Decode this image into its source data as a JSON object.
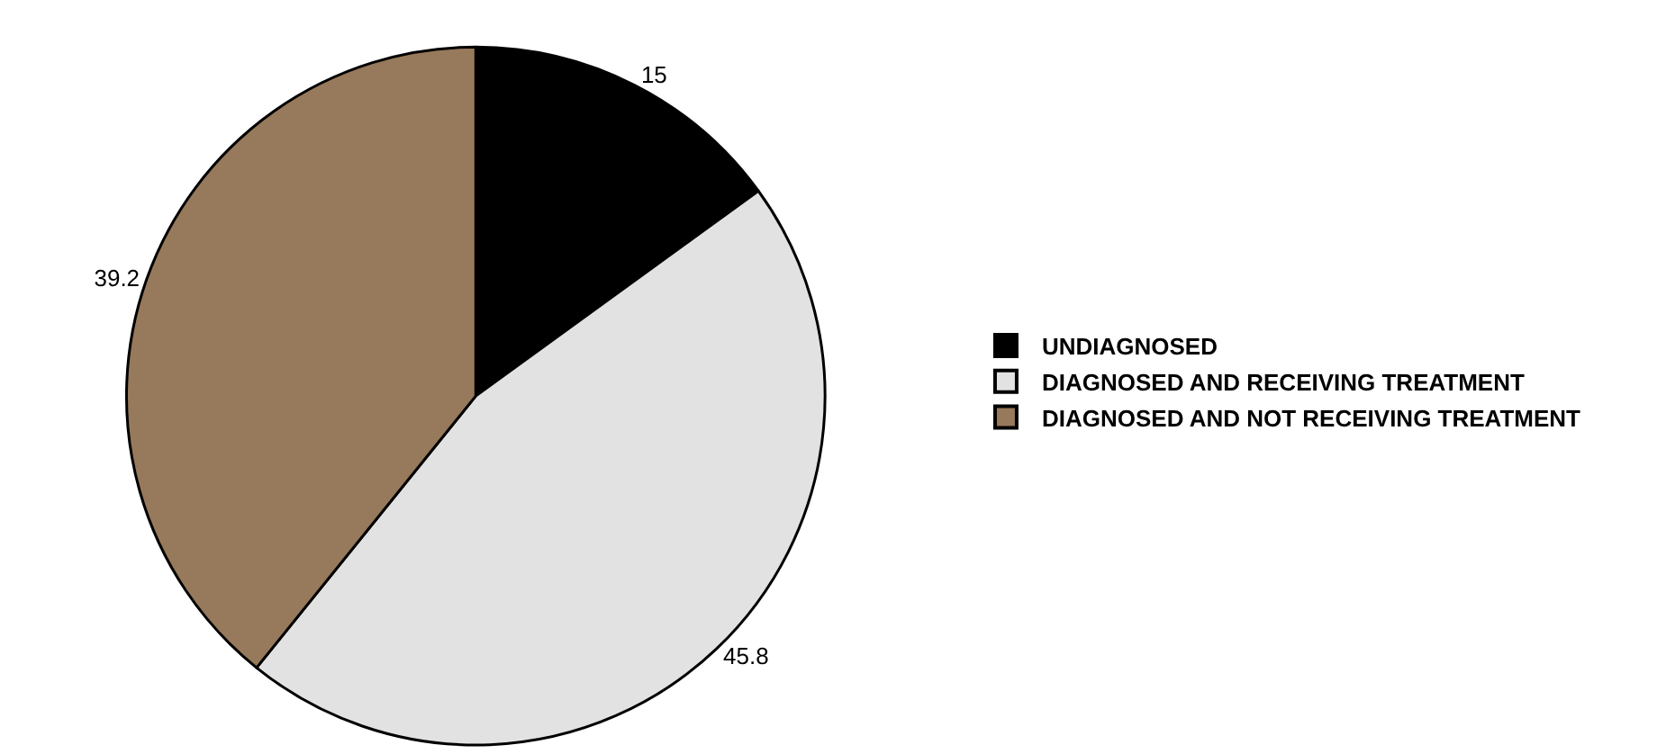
{
  "chart_data": {
    "type": "pie",
    "categories": [
      "UNDIAGNOSED",
      "DIAGNOSED AND RECEIVING TREATMENT",
      "DIAGNOSED AND NOT RECEIVING TREATMENT"
    ],
    "values": [
      15,
      45.8,
      39.2
    ],
    "colors": [
      "#000000",
      "#e2e2e2",
      "#97795b"
    ],
    "data_labels": true,
    "legend": "right"
  }
}
